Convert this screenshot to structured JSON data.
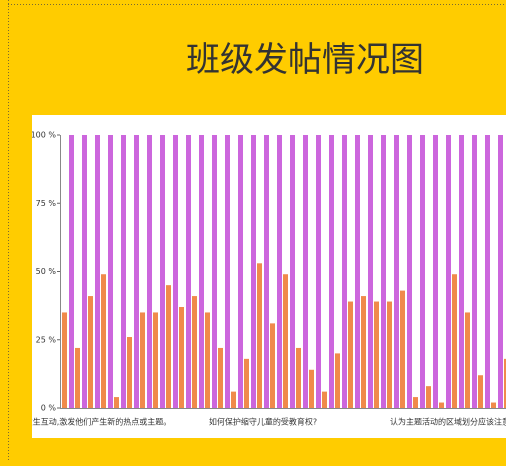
{
  "chart_data": {
    "type": "bar",
    "title": "班级发帖情况图",
    "categories": [
      null,
      null,
      "儿发生互动,激发他们产生新的热点或主题。",
      null,
      null,
      null,
      null,
      null,
      null,
      null,
      null,
      null,
      null,
      null,
      null,
      "如何保护缩守儿童的受教育权?",
      null,
      null,
      null,
      null,
      null,
      null,
      null,
      null,
      null,
      null,
      null,
      null,
      null,
      null,
      "认为主题活动的区域划分应该注意什么",
      null,
      null,
      null,
      null
    ],
    "series": [
      {
        "color": "#f08a4b",
        "values": [
          35,
          22,
          41,
          49,
          4,
          26,
          35,
          35,
          45,
          37,
          41,
          35,
          22,
          6,
          18,
          53,
          31,
          49,
          22,
          14,
          6,
          20,
          39,
          41,
          39,
          39,
          43,
          4,
          8,
          2,
          49,
          35,
          12,
          2,
          18
        ]
      },
      {
        "color": "#cc66dd",
        "values": [
          100,
          100,
          100,
          100,
          100,
          100,
          100,
          100,
          100,
          100,
          100,
          100,
          100,
          100,
          100,
          100,
          100,
          100,
          100,
          100,
          100,
          100,
          100,
          100,
          100,
          100,
          100,
          100,
          100,
          100,
          100,
          100,
          100,
          100,
          100
        ]
      }
    ],
    "ylim": [
      0,
      100
    ],
    "yticks": [
      {
        "value": 0,
        "label": "0 %"
      },
      {
        "value": 25,
        "label": "25 %"
      },
      {
        "value": 50,
        "label": "50 %"
      },
      {
        "value": 75,
        "label": "75 %"
      },
      {
        "value": 100,
        "label": "100 %"
      }
    ]
  }
}
